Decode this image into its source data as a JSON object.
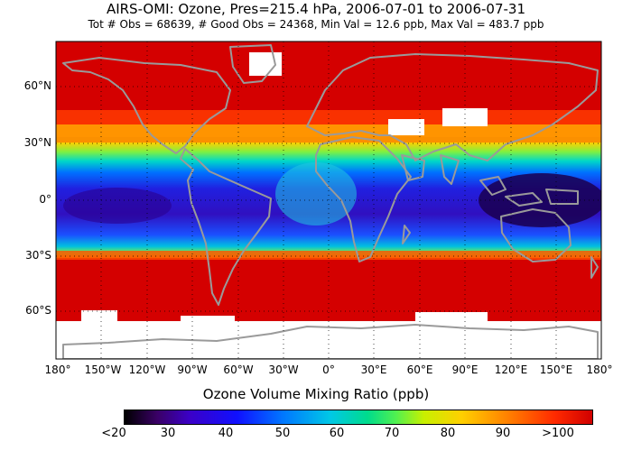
{
  "title": "AIRS-OMI: Ozone, Pres=215.4 hPa, 2006-07-01 to 2006-07-31",
  "stats": "Tot # Obs = 68639, # Good Obs = 24368,  Min Val =   12.6 ppb,  Max Val =  483.7 ppb",
  "lat_labels": [
    "60°N",
    "30°N",
    "0°",
    "30°S",
    "60°S"
  ],
  "lon_labels": [
    "180°",
    "150°W",
    "120°W",
    "90°W",
    "60°W",
    "30°W",
    "0°",
    "30°E",
    "60°E",
    "90°E",
    "120°E",
    "150°E",
    "180°"
  ],
  "colorbar": {
    "title": "Ozone Volume Mixing Ratio (ppb)",
    "labels": [
      "<20",
      "30",
      "40",
      "50",
      "60",
      "70",
      "80",
      "90",
      ">100"
    ]
  },
  "colors": {
    "high_ozone": "#d40000",
    "coast": "#9a9a9a",
    "missing": "#ffffff"
  }
}
